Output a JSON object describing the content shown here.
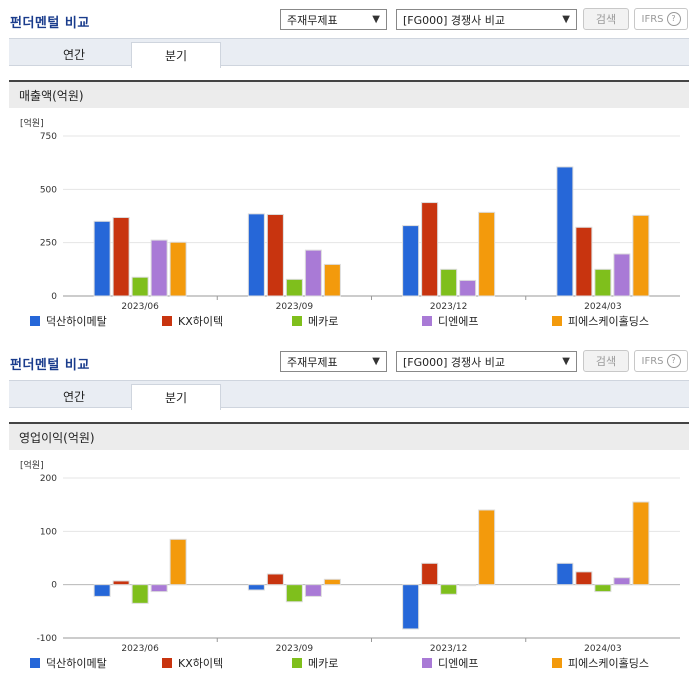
{
  "header": {
    "title": "펀더멘털 비교",
    "select1": "주재무제표",
    "select2": "[FG000] 경쟁사 비교",
    "search_label": "검색",
    "ifrs_label": "IFRS",
    "help_glyph": "?"
  },
  "tabs": {
    "annual": "연간",
    "quarter": "분기"
  },
  "colors": {
    "덕산하이메탈": "#2667d8",
    "KX하이텍": "#c8340f",
    "메카로": "#7fbf1c",
    "디엔에프": "#a97ad6",
    "피에스케이홀딩스": "#f39a0c"
  },
  "unit_label": "[억원]",
  "chart_data": [
    {
      "type": "bar",
      "title": "매출액(억원)",
      "categories": [
        "2023/06",
        "2023/09",
        "2023/12",
        "2024/03"
      ],
      "ylim": [
        0,
        750
      ],
      "yticks": [
        0,
        250,
        500,
        750
      ],
      "series": [
        {
          "name": "덕산하이메탈",
          "values": [
            350,
            385,
            330,
            605
          ]
        },
        {
          "name": "KX하이텍",
          "values": [
            368,
            382,
            438,
            322
          ]
        },
        {
          "name": "메카로",
          "values": [
            88,
            78,
            125,
            125
          ]
        },
        {
          "name": "디엔에프",
          "values": [
            262,
            215,
            73,
            197
          ]
        },
        {
          "name": "피에스케이홀딩스",
          "values": [
            252,
            148,
            392,
            378
          ]
        }
      ],
      "legend": "bottom",
      "grid": true
    },
    {
      "type": "bar",
      "title": "영업이익(억원)",
      "categories": [
        "2023/06",
        "2023/09",
        "2023/12",
        "2024/03"
      ],
      "ylim": [
        -100,
        200
      ],
      "yticks": [
        -100,
        0,
        100,
        200
      ],
      "series": [
        {
          "name": "덕산하이메탈",
          "values": [
            -22,
            -10,
            -83,
            40
          ]
        },
        {
          "name": "KX하이텍",
          "values": [
            7,
            20,
            40,
            24
          ]
        },
        {
          "name": "메카로",
          "values": [
            -35,
            -32,
            -18,
            -13
          ]
        },
        {
          "name": "디엔에프",
          "values": [
            -13,
            -22,
            0,
            13
          ]
        },
        {
          "name": "피에스케이홀딩스",
          "values": [
            85,
            10,
            140,
            155
          ]
        }
      ],
      "legend": "bottom",
      "grid": true
    }
  ]
}
